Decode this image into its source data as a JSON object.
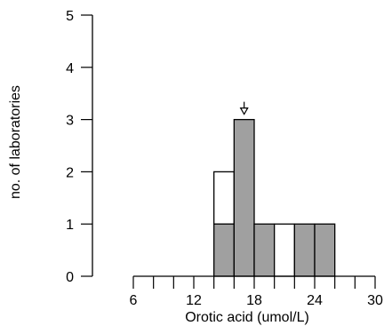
{
  "chart_data": {
    "type": "bar",
    "xlabel": "Orotic acid (umol/L)",
    "ylabel": "no. of laboratories",
    "xlim": [
      6,
      30
    ],
    "ylim": [
      0,
      5
    ],
    "x_ticks": [
      6,
      12,
      18,
      24,
      30
    ],
    "y_ticks": [
      0,
      1,
      2,
      3,
      4,
      5
    ],
    "bin_width": 2,
    "bins": [
      {
        "x0": 6,
        "x1": 8,
        "total": 0,
        "shaded": 0
      },
      {
        "x0": 8,
        "x1": 10,
        "total": 0,
        "shaded": 0
      },
      {
        "x0": 10,
        "x1": 12,
        "total": 0,
        "shaded": 0
      },
      {
        "x0": 12,
        "x1": 14,
        "total": 0,
        "shaded": 0
      },
      {
        "x0": 14,
        "x1": 16,
        "total": 2,
        "shaded": 1
      },
      {
        "x0": 16,
        "x1": 18,
        "total": 3,
        "shaded": 3
      },
      {
        "x0": 18,
        "x1": 20,
        "total": 1,
        "shaded": 1
      },
      {
        "x0": 20,
        "x1": 22,
        "total": 1,
        "shaded": 0
      },
      {
        "x0": 22,
        "x1": 24,
        "total": 1,
        "shaded": 1
      },
      {
        "x0": 24,
        "x1": 26,
        "total": 1,
        "shaded": 1
      },
      {
        "x0": 26,
        "x1": 28,
        "total": 0,
        "shaded": 0
      },
      {
        "x0": 28,
        "x1": 30,
        "total": 0,
        "shaded": 0
      }
    ],
    "target_marker_x": 17,
    "colors": {
      "shaded": "#a0a0a0",
      "unshaded": "#ffffff",
      "stroke": "#000000"
    },
    "grid": false,
    "legend": "none"
  }
}
